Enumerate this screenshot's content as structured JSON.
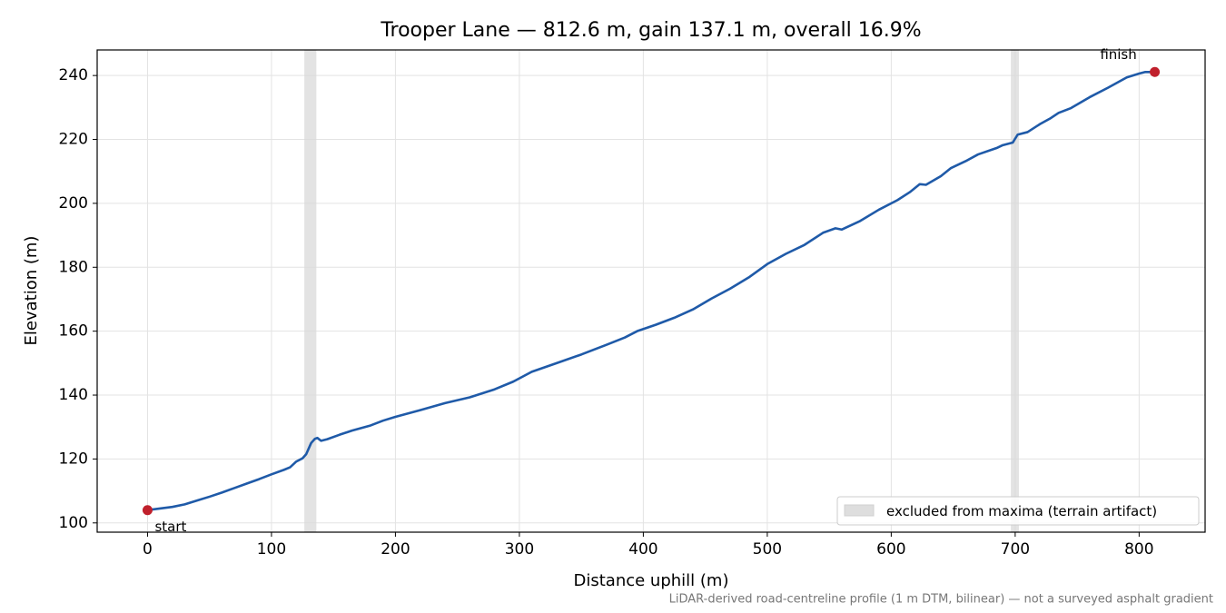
{
  "chart_data": {
    "type": "line",
    "title": "Trooper Lane — 812.6 m, gain 137.1 m, overall 16.9%",
    "x_label": "Distance uphill (m)",
    "y_label": "Elevation (m)",
    "note": "LiDAR-derived road-centreline profile (1 m DTM, bilinear) — not a surveyed asphalt gradient",
    "x": [
      0,
      10,
      20,
      30,
      40,
      50,
      60,
      70,
      80,
      90,
      100,
      110,
      115,
      120,
      125,
      128,
      132,
      135,
      137,
      140,
      145,
      155,
      165,
      180,
      190,
      200,
      220,
      240,
      260,
      280,
      295,
      310,
      330,
      350,
      370,
      385,
      395,
      410,
      425,
      440,
      455,
      470,
      485,
      500,
      515,
      530,
      545,
      555,
      560,
      575,
      590,
      605,
      615,
      623,
      628,
      640,
      648,
      660,
      670,
      685,
      690,
      698,
      702,
      710,
      720,
      728,
      735,
      745,
      760,
      775,
      790,
      800,
      805,
      812.6
    ],
    "values": [
      104,
      104.5,
      105,
      105.8,
      107,
      108.2,
      109.5,
      110.9,
      112.3,
      113.7,
      115.2,
      116.6,
      117.4,
      119.2,
      120.2,
      121.5,
      125,
      126.3,
      126.6,
      125.7,
      126.2,
      127.6,
      128.9,
      130.5,
      132,
      133.2,
      135.3,
      137.5,
      139.3,
      141.8,
      144.2,
      147.3,
      150,
      152.7,
      155.7,
      158,
      160,
      162,
      164.2,
      166.8,
      170.2,
      173.3,
      176.8,
      181,
      184.2,
      187,
      190.8,
      192.2,
      191.8,
      194.5,
      198,
      201,
      203.5,
      206,
      205.8,
      208.5,
      211,
      213.2,
      215.3,
      217.3,
      218.2,
      219,
      221.5,
      222.3,
      224.8,
      226.5,
      228.3,
      229.8,
      233.2,
      236.2,
      239.4,
      240.6,
      241.1,
      241.1
    ],
    "color": "#1f5aa8",
    "bands": [
      [
        126.5,
        136.2
      ],
      [
        696.5,
        703
      ]
    ],
    "band_color": "#d9d9d9",
    "band_label": "excluded from maxima (terrain artifact)",
    "markers": [
      {
        "label": "start",
        "x": 0,
        "y": 104
      },
      {
        "label": "finish",
        "x": 812.6,
        "y": 241.1
      }
    ],
    "marker_color": "#c0202c",
    "xlim": [
      -40.63,
      853.23
    ],
    "ylim": [
      97.1,
      248.0
    ],
    "xticks": [
      0,
      100,
      200,
      300,
      400,
      500,
      600,
      700,
      800
    ],
    "yticks": [
      100,
      120,
      140,
      160,
      180,
      200,
      220,
      240
    ],
    "grid": true,
    "legend": "lower right"
  }
}
